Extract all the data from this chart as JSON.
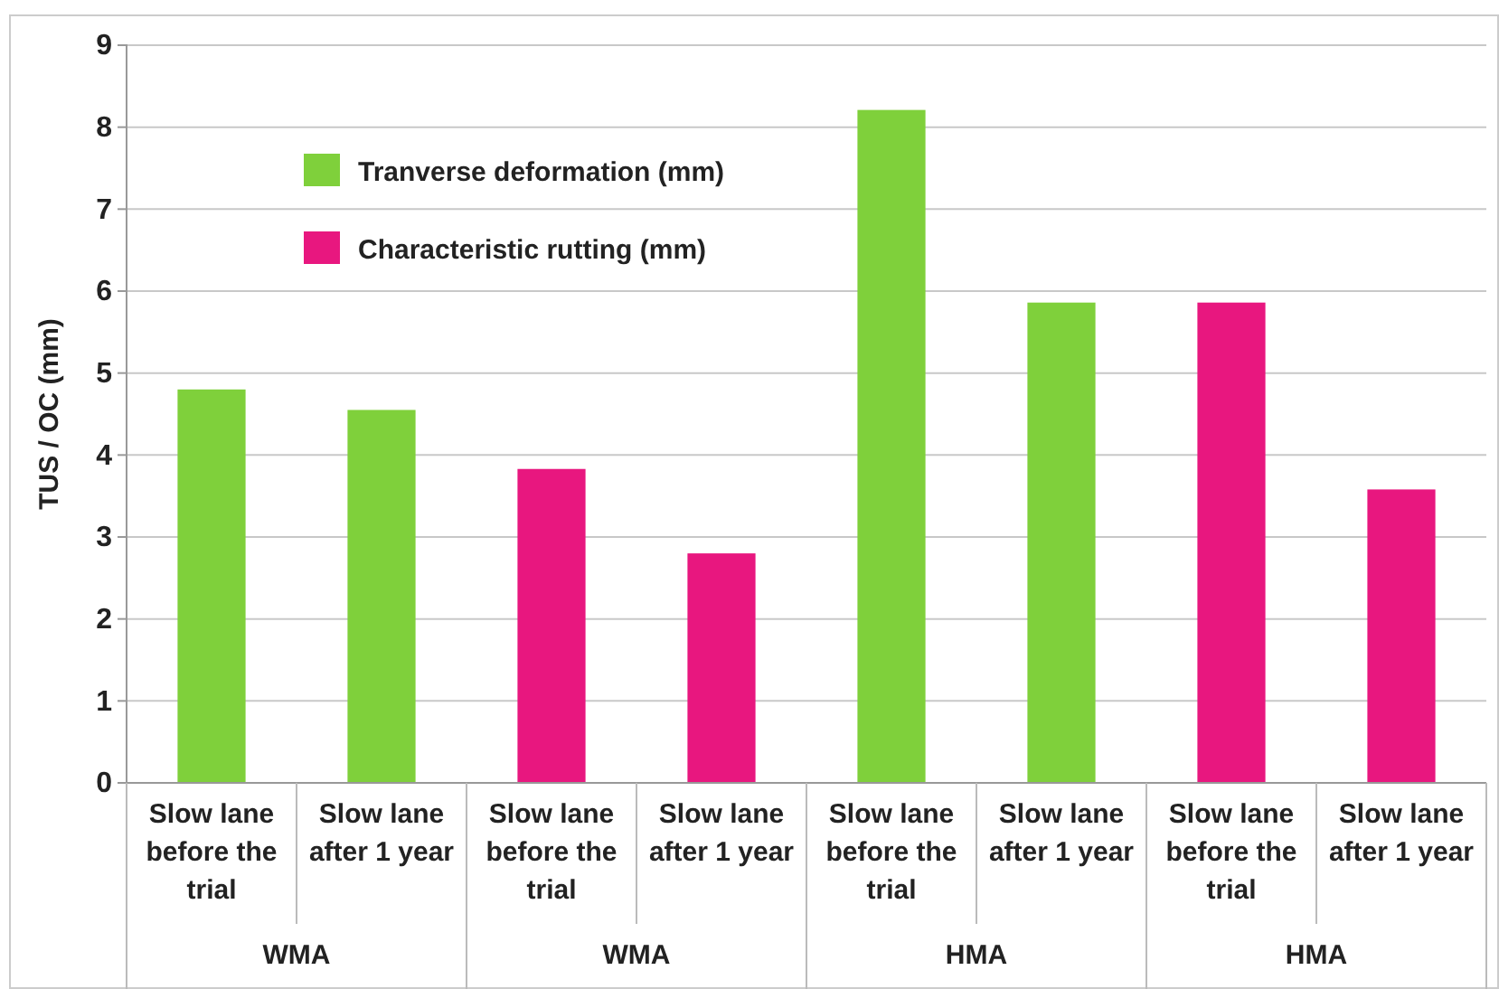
{
  "chart_data": {
    "type": "bar",
    "ylabel": "TUS / OC (mm)",
    "categories": [
      "Slow lane before the trial",
      "Slow lane after 1 year",
      "Slow lane before the trial",
      "Slow lane after 1 year",
      "Slow lane before the trial",
      "Slow lane after 1 year",
      "Slow lane before the trial",
      "Slow lane after 1 year"
    ],
    "series": [
      {
        "name": "Tranverse deformation (mm)",
        "color": "#7fd03b",
        "values": [
          4.8,
          4.55,
          null,
          null,
          8.21,
          5.86,
          null,
          null
        ]
      },
      {
        "name": "Characteristic rutting (mm)",
        "color": "#e8177f",
        "values": [
          null,
          null,
          3.83,
          2.8,
          null,
          null,
          5.86,
          3.58
        ]
      }
    ],
    "annotations": [
      "WMA",
      "WMA",
      "HMA",
      "HMA"
    ],
    "ylim": [
      0,
      9
    ],
    "yticks": [
      0,
      1,
      2,
      3,
      4,
      5,
      6,
      7,
      8,
      9
    ],
    "grid": "y",
    "legend": "top left"
  }
}
